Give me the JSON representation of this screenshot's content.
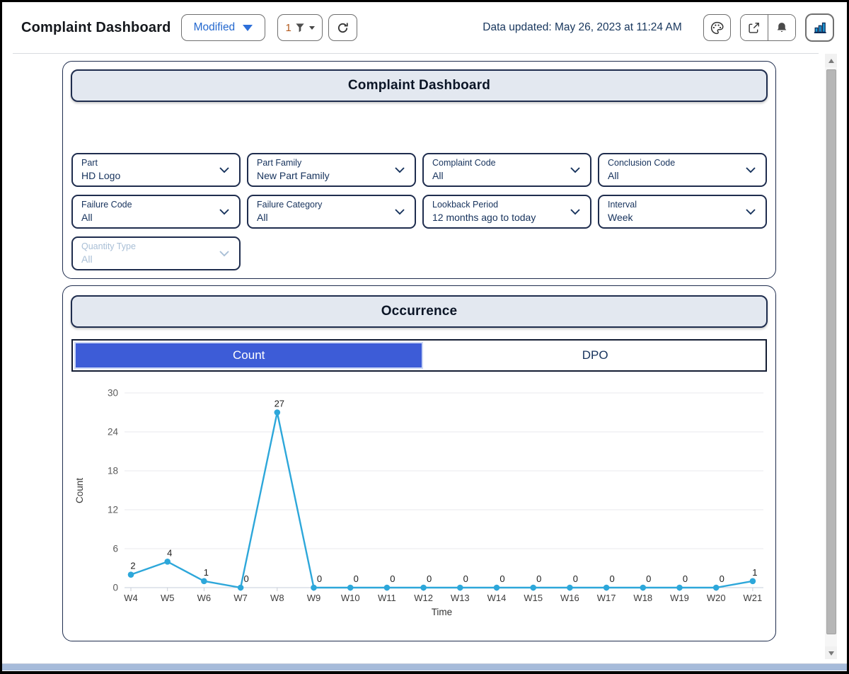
{
  "toolbar": {
    "title": "Complaint Dashboard",
    "modified_label": "Modified",
    "filter_count": "1",
    "data_updated": "Data updated: May 26, 2023 at 11:24 AM"
  },
  "panels": {
    "filters": {
      "header": "Complaint Dashboard",
      "dropdowns": [
        {
          "label": "Part",
          "value": "HD Logo",
          "disabled": false
        },
        {
          "label": "Part Family",
          "value": "New Part Family",
          "disabled": false
        },
        {
          "label": "Complaint Code",
          "value": "All",
          "disabled": false
        },
        {
          "label": "Conclusion Code",
          "value": "All",
          "disabled": false
        },
        {
          "label": "Failure Code",
          "value": "All",
          "disabled": false
        },
        {
          "label": "Failure Category",
          "value": "All",
          "disabled": false
        },
        {
          "label": "Lookback Period",
          "value": "12 months ago to today",
          "disabled": false
        },
        {
          "label": "Interval",
          "value": "Week",
          "disabled": false
        },
        {
          "label": "Quantity Type",
          "value": "All",
          "disabled": true
        }
      ]
    },
    "occurrence": {
      "header": "Occurrence",
      "tabs": [
        {
          "label": "Count",
          "selected": true
        },
        {
          "label": "DPO",
          "selected": false
        }
      ]
    }
  },
  "chart_data": {
    "type": "line",
    "categories": [
      "W4",
      "W5",
      "W6",
      "W7",
      "W8",
      "W9",
      "W10",
      "W11",
      "W12",
      "W13",
      "W14",
      "W15",
      "W16",
      "W17",
      "W18",
      "W19",
      "W20",
      "W21"
    ],
    "values": [
      2,
      4,
      1,
      0,
      27,
      0,
      0,
      0,
      0,
      0,
      0,
      0,
      0,
      0,
      0,
      0,
      0,
      1
    ],
    "title": "",
    "xlabel": "Time",
    "ylabel": "Count",
    "ylim": [
      0,
      30
    ],
    "yticks": [
      0,
      6,
      12,
      18,
      24,
      30
    ],
    "grid": true,
    "legend": "none",
    "line_color": "#2da7da"
  },
  "icons": {
    "modified-caret-icon": "▼",
    "filter-funnel-icon": "funnel-shape",
    "refresh-icon": "circular-arrow",
    "palette-icon": "artist-palette",
    "share-icon": "box-arrow-out",
    "bell-icon": "notification-bell",
    "bar-chart-icon": "three-blue-bars",
    "chevron-down-icon": "⌄",
    "scroll-up-icon": "▲",
    "scroll-down-icon": "▼"
  },
  "colors": {
    "accent_blue": "#2368cf",
    "tab_selected_blue": "#3d5cd7",
    "chart_line": "#2da7da",
    "panel_header_bg": "#e3e8f0",
    "panel_border": "#1f2d4e",
    "navy_text": "#16325c",
    "filter_count_orange": "#b35a1e",
    "bottom_bar_blue": "#a6bbda"
  }
}
